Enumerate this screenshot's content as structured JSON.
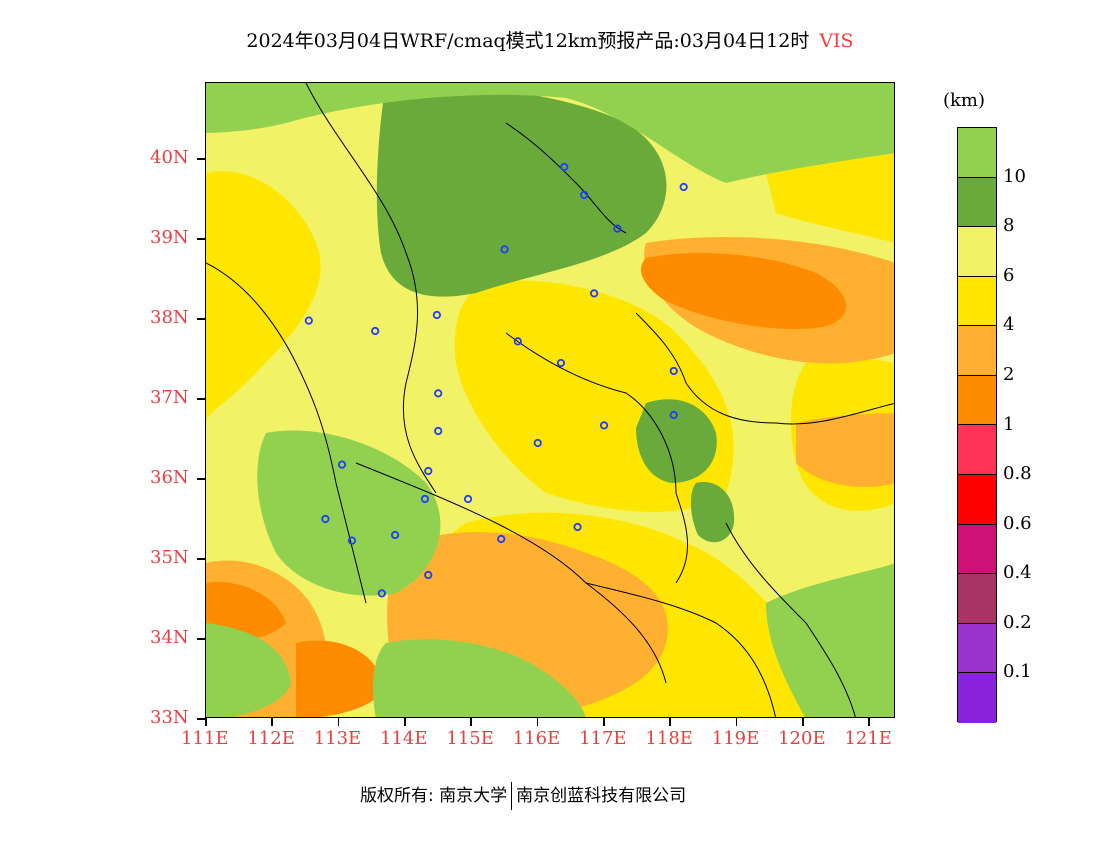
{
  "title": {
    "main": "2024年03月04日WRF/cmaq模式12km预报产品:03月04日12时",
    "variable": "VIS"
  },
  "lat_labels": [
    "40N",
    "39N",
    "38N",
    "37N",
    "36N",
    "35N",
    "34N",
    "33N"
  ],
  "lon_labels": [
    "111E",
    "112E",
    "113E",
    "114E",
    "115E",
    "116E",
    "117E",
    "118E",
    "119E",
    "120E",
    "121E"
  ],
  "legend": {
    "unit": "(km)",
    "labels": [
      "10",
      "8",
      "6",
      "4",
      "2",
      "1",
      "0.8",
      "0.6",
      "0.4",
      "0.2",
      "0.1"
    ],
    "colors_top_to_bottom": [
      "#92d050",
      "#6aaa3a",
      "#f2f266",
      "#ffe600",
      "#ffb030",
      "#ff8c00",
      "#ff3355",
      "#ff0000",
      "#cc1177",
      "#aa3366",
      "#9933cc",
      "#8822dd"
    ]
  },
  "stations": [
    {
      "lon": 116.4,
      "lat": 39.9
    },
    {
      "lon": 116.7,
      "lat": 39.55
    },
    {
      "lon": 117.2,
      "lat": 39.13
    },
    {
      "lon": 118.2,
      "lat": 39.65
    },
    {
      "lon": 115.5,
      "lat": 38.87
    },
    {
      "lon": 116.85,
      "lat": 38.32
    },
    {
      "lon": 112.55,
      "lat": 37.98
    },
    {
      "lon": 113.55,
      "lat": 37.85
    },
    {
      "lon": 114.48,
      "lat": 38.05
    },
    {
      "lon": 115.7,
      "lat": 37.72
    },
    {
      "lon": 116.35,
      "lat": 37.45
    },
    {
      "lon": 118.05,
      "lat": 37.35
    },
    {
      "lon": 114.5,
      "lat": 37.07
    },
    {
      "lon": 118.05,
      "lat": 36.8
    },
    {
      "lon": 117.0,
      "lat": 36.67
    },
    {
      "lon": 114.5,
      "lat": 36.6
    },
    {
      "lon": 116.0,
      "lat": 36.45
    },
    {
      "lon": 113.05,
      "lat": 36.18
    },
    {
      "lon": 114.35,
      "lat": 36.1
    },
    {
      "lon": 114.3,
      "lat": 35.75
    },
    {
      "lon": 114.95,
      "lat": 35.75
    },
    {
      "lon": 112.8,
      "lat": 35.5
    },
    {
      "lon": 113.2,
      "lat": 35.23
    },
    {
      "lon": 113.85,
      "lat": 35.3
    },
    {
      "lon": 115.45,
      "lat": 35.25
    },
    {
      "lon": 116.6,
      "lat": 35.4
    },
    {
      "lon": 114.35,
      "lat": 34.8
    },
    {
      "lon": 113.65,
      "lat": 34.57
    }
  ],
  "copyright": {
    "left": "版权所有: 南京大学",
    "right": "南京创蓝科技有限公司"
  }
}
